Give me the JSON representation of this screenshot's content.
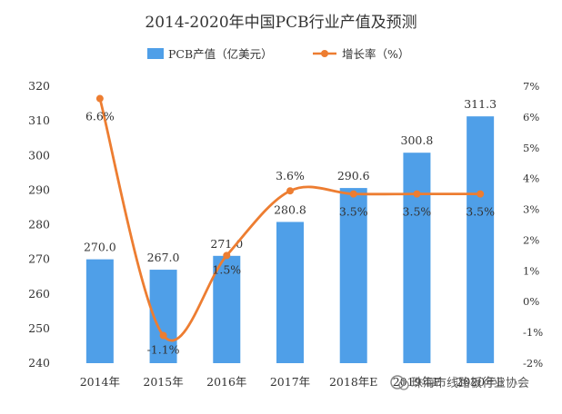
{
  "chart_data": {
    "type": "bar",
    "title": "2014-2020年中国PCB行业产值及预测",
    "categories": [
      "2014年",
      "2015年",
      "2016年",
      "2017年",
      "2018年E",
      "2019年E",
      "2020年E"
    ],
    "series": [
      {
        "name": "PCB产值（亿美元）",
        "type": "bar",
        "axis": "left",
        "color": "#4f9fe8",
        "values": [
          270.0,
          267.0,
          271.0,
          280.8,
          290.6,
          300.8,
          311.3
        ],
        "labels": [
          "270.0",
          "267.0",
          "271.0",
          "280.8",
          "290.6",
          "300.8",
          "311.3"
        ]
      },
      {
        "name": "增长率（%）",
        "type": "line",
        "axis": "right",
        "color": "#ed7d31",
        "values": [
          6.6,
          -1.1,
          1.5,
          3.6,
          3.5,
          3.5,
          3.5
        ],
        "labels": [
          "6.6%",
          "-1.1%",
          "1.5%",
          "3.6%",
          "3.5%",
          "3.5%",
          "3.5%"
        ]
      }
    ],
    "y_left": {
      "min": 240,
      "max": 320,
      "ticks": [
        "320",
        "310",
        "300",
        "290",
        "280",
        "270",
        "260",
        "250",
        "240"
      ]
    },
    "y_right": {
      "min": -2,
      "max": 7,
      "ticks": [
        "7%",
        "6%",
        "5%",
        "4%",
        "3%",
        "2%",
        "1%",
        "0%",
        "-1%",
        "-2%"
      ]
    },
    "grid": false,
    "legend_position": "top"
  },
  "watermark": {
    "text": "珠海市线路板行业协会"
  }
}
